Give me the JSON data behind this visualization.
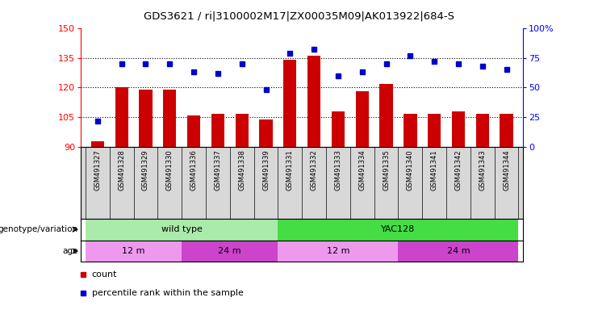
{
  "title": "GDS3621 / ri|3100002M17|ZX00035M09|AK013922|684-S",
  "samples": [
    "GSM491327",
    "GSM491328",
    "GSM491329",
    "GSM491330",
    "GSM491336",
    "GSM491337",
    "GSM491338",
    "GSM491339",
    "GSM491331",
    "GSM491332",
    "GSM491333",
    "GSM491334",
    "GSM491335",
    "GSM491340",
    "GSM491341",
    "GSM491342",
    "GSM491343",
    "GSM491344"
  ],
  "counts": [
    93,
    120,
    119,
    119,
    106,
    107,
    107,
    104,
    134,
    136,
    108,
    118,
    122,
    107,
    107,
    108,
    107,
    107
  ],
  "percentile_ranks": [
    22,
    70,
    70,
    70,
    63,
    62,
    70,
    48,
    79,
    82,
    60,
    63,
    70,
    77,
    72,
    70,
    68,
    65
  ],
  "ylim_left": [
    90,
    150
  ],
  "ylim_right": [
    0,
    100
  ],
  "yticks_left": [
    90,
    105,
    120,
    135,
    150
  ],
  "yticks_right": [
    0,
    25,
    50,
    75,
    100
  ],
  "bar_color": "#cc0000",
  "dot_color": "#0000cc",
  "bg_color": "#ffffff",
  "plot_bg": "#ffffff",
  "label_bg": "#d8d8d8",
  "genotype_groups": [
    {
      "label": "wild type",
      "start": 0,
      "end": 8,
      "color": "#aaeaaa"
    },
    {
      "label": "YAC128",
      "start": 8,
      "end": 18,
      "color": "#44dd44"
    }
  ],
  "age_groups": [
    {
      "label": "12 m",
      "start": 0,
      "end": 4,
      "color": "#ee99ee"
    },
    {
      "label": "24 m",
      "start": 4,
      "end": 8,
      "color": "#cc44cc"
    },
    {
      "label": "12 m",
      "start": 8,
      "end": 13,
      "color": "#ee99ee"
    },
    {
      "label": "24 m",
      "start": 13,
      "end": 18,
      "color": "#cc44cc"
    }
  ],
  "legend_items": [
    {
      "label": "count",
      "color": "#cc0000"
    },
    {
      "label": "percentile rank within the sample",
      "color": "#0000cc"
    }
  ]
}
